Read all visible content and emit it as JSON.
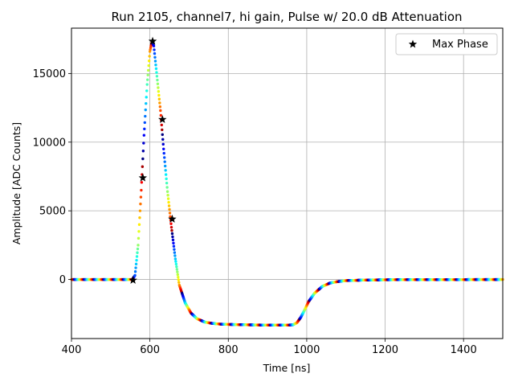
{
  "chart_data": {
    "type": "scatter",
    "title": "Run 2105, channel7, hi gain, Pulse w/ 20.0 dB Attenuation",
    "xlabel": "Time [ns]",
    "ylabel": "Amplitude [ADC Counts]",
    "xlim": [
      400,
      1500
    ],
    "ylim": [
      -4300,
      18300
    ],
    "xticks": [
      400,
      600,
      800,
      1000,
      1200,
      1400
    ],
    "yticks": [
      0,
      5000,
      10000,
      15000
    ],
    "grid": true,
    "legend_position": "top-right",
    "colormap": "jet",
    "waveform_series": {
      "x": [
        400,
        555,
        562,
        570,
        578,
        585,
        593,
        600,
        605,
        610,
        618,
        627,
        635,
        645,
        655,
        665,
        675,
        690,
        705,
        720,
        740,
        760,
        780,
        800,
        850,
        900,
        950,
        965,
        975,
        985,
        995,
        1005,
        1020,
        1040,
        1060,
        1080,
        1100,
        1150,
        1200,
        1300,
        1400,
        1500
      ],
      "y": [
        0,
        0,
        300,
        2500,
        6500,
        10500,
        14200,
        16600,
        17300,
        17000,
        14800,
        12300,
        9500,
        6400,
        3800,
        1500,
        -400,
        -1700,
        -2450,
        -2850,
        -3100,
        -3200,
        -3250,
        -3270,
        -3300,
        -3320,
        -3320,
        -3300,
        -3150,
        -2750,
        -2200,
        -1600,
        -1000,
        -500,
        -250,
        -150,
        -80,
        -40,
        -20,
        -10,
        -5,
        0
      ]
    },
    "max_phase": {
      "name": "Max Phase",
      "x": [
        557,
        582,
        607,
        632,
        657
      ],
      "y": [
        -50,
        7400,
        17350,
        11650,
        4400
      ]
    }
  }
}
